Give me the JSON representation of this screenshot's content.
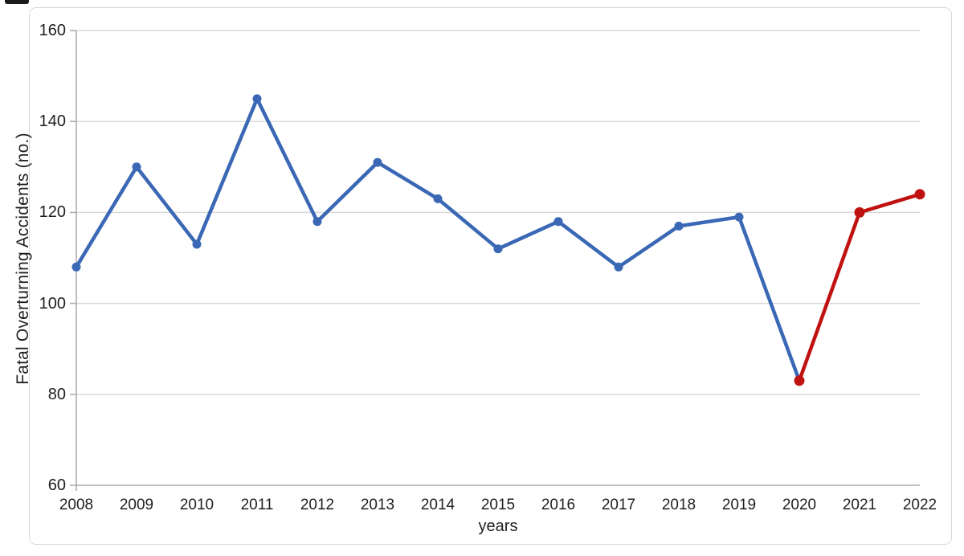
{
  "chart_data": {
    "type": "line",
    "title": "",
    "xlabel": "years",
    "ylabel": "Fatal Overturning Accidents (no.)",
    "categories": [
      "2008",
      "2009",
      "2010",
      "2011",
      "2012",
      "2013",
      "2014",
      "2015",
      "2016",
      "2017",
      "2018",
      "2019",
      "2020",
      "2021",
      "2022"
    ],
    "values": [
      108,
      130,
      113,
      145,
      118,
      131,
      123,
      112,
      118,
      108,
      117,
      119,
      83,
      120,
      124
    ],
    "ylim": [
      60,
      160
    ],
    "yticks": [
      60,
      80,
      100,
      120,
      140,
      160
    ],
    "grid": "horizontal",
    "legend": "none",
    "segments": [
      {
        "color": "#3a68b5",
        "from_index": 0,
        "to_index": 12,
        "marker_from_index": 0,
        "marker_to_index": 11,
        "note": "blue historical line 2008-2020, blue markers 2008-2019"
      },
      {
        "color": "#c11212",
        "from_index": 12,
        "to_index": 14,
        "marker_from_index": 12,
        "marker_to_index": 14,
        "note": "red highlighted line and markers 2020-2022"
      }
    ],
    "axis_colors": {
      "gridline": "#d9d9d9",
      "axis_line": "#acacac",
      "tick": "#acacac",
      "text": "#1f1f1f"
    }
  }
}
